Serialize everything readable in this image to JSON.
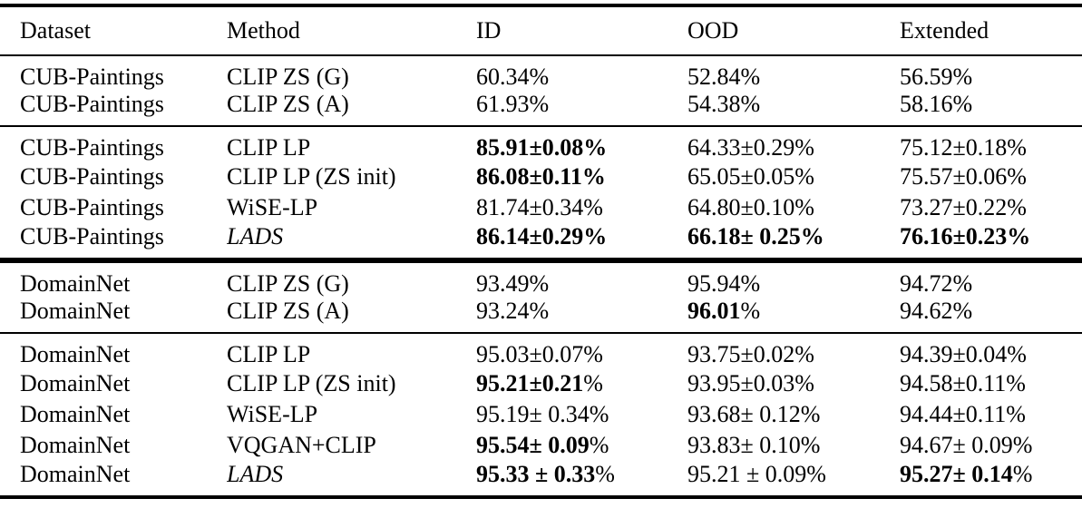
{
  "colors": {
    "text": "#000000",
    "rules": "#000000",
    "background": "#ffffff"
  },
  "header": {
    "dataset": "Dataset",
    "method": "Method",
    "id": "ID",
    "ood": "OOD",
    "extended": "Extended"
  },
  "chart_data": {
    "type": "table",
    "columns": [
      "Dataset",
      "Method",
      "ID",
      "OOD",
      "Extended"
    ],
    "note": "bold segments stored in 'b', regular segments in 'r'"
  },
  "rows": [
    {
      "dataset": "CUB-Paintings",
      "method": "CLIP ZS (G)",
      "id": {
        "b": "",
        "r": "60.34%"
      },
      "ood": {
        "b": "",
        "r": "52.84%"
      },
      "extended": {
        "b": "",
        "r": "56.59%"
      }
    },
    {
      "dataset": "CUB-Paintings",
      "method": "CLIP ZS (A)",
      "id": {
        "b": "",
        "r": "61.93%"
      },
      "ood": {
        "b": "",
        "r": "54.38%"
      },
      "extended": {
        "b": "",
        "r": "58.16%"
      }
    },
    {
      "dataset": "CUB-Paintings",
      "method": "CLIP LP",
      "id": {
        "b": "85.91±0.08%",
        "r": ""
      },
      "ood": {
        "b": "",
        "r": "64.33±0.29%"
      },
      "extended": {
        "b": "",
        "r": "75.12±0.18%"
      }
    },
    {
      "dataset": "CUB-Paintings",
      "method": "CLIP LP (ZS init)",
      "id": {
        "b": "86.08±0.11%",
        "r": ""
      },
      "ood": {
        "b": "",
        "r": "65.05±0.05%"
      },
      "extended": {
        "b": "",
        "r": "75.57±0.06%"
      }
    },
    {
      "dataset": "CUB-Paintings",
      "method": "WiSE-LP",
      "id": {
        "b": "",
        "r": "81.74±0.34%"
      },
      "ood": {
        "b": "",
        "r": "64.80±0.10%"
      },
      "extended": {
        "b": "",
        "r": "73.27±0.22%"
      }
    },
    {
      "dataset": "CUB-Paintings",
      "method": "LADS",
      "id": {
        "b": "86.14±0.29%",
        "r": ""
      },
      "ood": {
        "b": "66.18± 0.25%",
        "r": ""
      },
      "extended": {
        "b": "76.16±0.23%",
        "r": ""
      }
    },
    {
      "dataset": "DomainNet",
      "method": "CLIP ZS (G)",
      "id": {
        "b": "",
        "r": "93.49%"
      },
      "ood": {
        "b": "",
        "r": "95.94%"
      },
      "extended": {
        "b": "",
        "r": "94.72%"
      }
    },
    {
      "dataset": "DomainNet",
      "method": "CLIP ZS (A)",
      "id": {
        "b": "",
        "r": "93.24%"
      },
      "ood": {
        "b": "96.01",
        "r": "%"
      },
      "extended": {
        "b": "",
        "r": "94.62%"
      }
    },
    {
      "dataset": "DomainNet",
      "method": "CLIP LP",
      "id": {
        "b": "",
        "r": "95.03±0.07%"
      },
      "ood": {
        "b": "",
        "r": "93.75±0.02%"
      },
      "extended": {
        "b": "",
        "r": "94.39±0.04%"
      }
    },
    {
      "dataset": "DomainNet",
      "method": "CLIP LP (ZS init)",
      "id": {
        "b": "95.21±0.21",
        "r": "%"
      },
      "ood": {
        "b": "",
        "r": "93.95±0.03%"
      },
      "extended": {
        "b": "",
        "r": "94.58±0.11%"
      }
    },
    {
      "dataset": "DomainNet",
      "method": "WiSE-LP",
      "id": {
        "b": "",
        "r": "95.19± 0.34%"
      },
      "ood": {
        "b": "",
        "r": "93.68± 0.12%"
      },
      "extended": {
        "b": "",
        "r": "94.44±0.11%"
      }
    },
    {
      "dataset": "DomainNet",
      "method": "VQGAN+CLIP",
      "id": {
        "b": "95.54± 0.09",
        "r": "%"
      },
      "ood": {
        "b": "",
        "r": "93.83± 0.10%"
      },
      "extended": {
        "b": "",
        "r": "94.67± 0.09%"
      }
    },
    {
      "dataset": "DomainNet",
      "method": "LADS",
      "id": {
        "b": "95.33 ± 0.33",
        "r": "%"
      },
      "ood": {
        "b": "",
        "r": "95.21 ± 0.09%"
      },
      "extended": {
        "b": "95.27± 0.14",
        "r": "%"
      }
    }
  ]
}
